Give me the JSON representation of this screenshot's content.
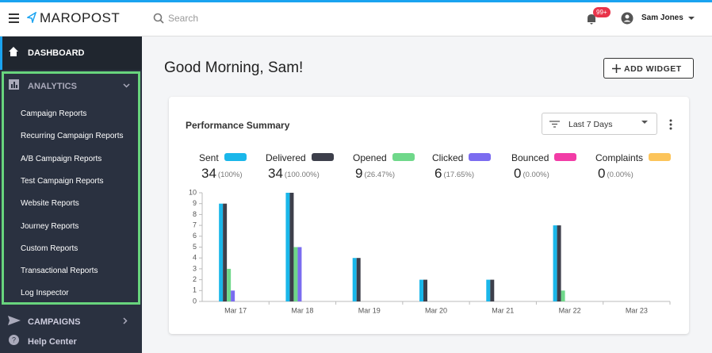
{
  "header": {
    "logo": "MAROPOST",
    "search_placeholder": "Search",
    "notification_badge": "99+",
    "user_name": "Sam Jones"
  },
  "sidebar": {
    "dashboard": "DASHBOARD",
    "analytics": {
      "title": "ANALYTICS",
      "items": [
        "Campaign Reports",
        "Recurring Campaign Reports",
        "A/B Campaign Reports",
        "Test Campaign Reports",
        "Website Reports",
        "Journey Reports",
        "Custom Reports",
        "Transactional Reports",
        "Log Inspector"
      ]
    },
    "campaigns": "CAMPAIGNS",
    "help": "Help Center"
  },
  "main": {
    "greeting": "Good Morning, Sam!",
    "add_widget": "ADD WIDGET",
    "card": {
      "title": "Performance Summary",
      "date_filter": "Last 7 Days",
      "summary": [
        {
          "total": 34,
          "percent": "(100%)"
        },
        {
          "total": 34,
          "percent": "(100.00%)"
        },
        {
          "total": 9,
          "percent": "(26.47%)"
        },
        {
          "total": 6,
          "percent": "(17.65%)"
        },
        {
          "total": 0,
          "percent": "(0.00%)"
        },
        {
          "total": 0,
          "percent": "(0.00%)"
        }
      ]
    }
  },
  "chart_data": {
    "type": "bar",
    "categories": [
      "Mar 17",
      "Mar 18",
      "Mar 19",
      "Mar 20",
      "Mar 21",
      "Mar 22",
      "Mar 23"
    ],
    "series": [
      {
        "name": "Sent",
        "color": "#1ab7ea",
        "values": [
          9,
          10,
          4,
          2,
          2,
          7,
          0
        ]
      },
      {
        "name": "Delivered",
        "color": "#3d3f4b",
        "values": [
          9,
          10,
          4,
          2,
          2,
          7,
          0
        ]
      },
      {
        "name": "Opened",
        "color": "#6fd88a",
        "values": [
          3,
          5,
          0,
          0,
          0,
          1,
          0
        ]
      },
      {
        "name": "Clicked",
        "color": "#7b6cf0",
        "values": [
          1,
          5,
          0,
          0,
          0,
          0,
          0
        ]
      },
      {
        "name": "Bounced",
        "color": "#f23ca6",
        "values": [
          0,
          0,
          0,
          0,
          0,
          0,
          0
        ]
      },
      {
        "name": "Complaints",
        "color": "#fcc45a",
        "values": [
          0,
          0,
          0,
          0,
          0,
          0,
          0
        ]
      }
    ],
    "ylim": [
      0,
      10
    ],
    "yticks": [
      0,
      1,
      2,
      3,
      4,
      5,
      6,
      7,
      8,
      9,
      10
    ],
    "grid": false
  }
}
